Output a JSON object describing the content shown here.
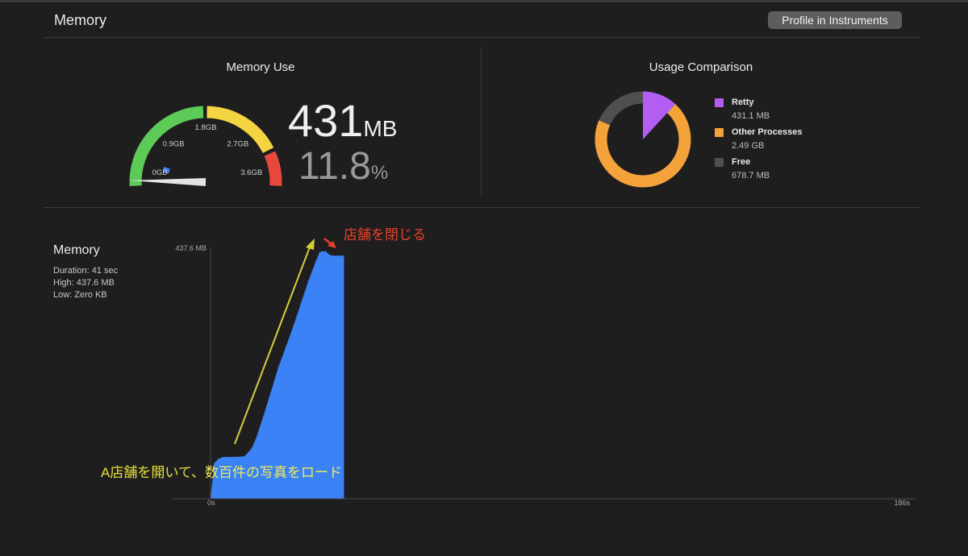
{
  "header": {
    "title": "Memory",
    "profile_button": "Profile in Instruments"
  },
  "memory_use": {
    "title": "Memory Use",
    "value": "431",
    "value_unit": "MB",
    "percent": "11.8",
    "percent_unit": "%",
    "gauge": {
      "ticks": [
        "0GB",
        "0.9GB",
        "1.8GB",
        "2.7GB",
        "3.6GB"
      ],
      "max_gb": 3.6,
      "needle_value_gb": 0.431,
      "segment_colors": [
        "#5dcb58",
        "#f5d443",
        "#e8483c"
      ],
      "marker_color": "#3b82f6"
    }
  },
  "usage_comparison": {
    "title": "Usage Comparison",
    "items": [
      {
        "name": "Retty",
        "value": "431.1 MB",
        "mb": 431.1,
        "color": "#b35df2"
      },
      {
        "name": "Other Processes",
        "value": "2.49 GB",
        "mb": 2549.8,
        "color": "#f3a33a"
      },
      {
        "name": "Free",
        "value": "678.7 MB",
        "mb": 678.7,
        "color": "#4f4f4f"
      }
    ]
  },
  "timeline": {
    "title": "Memory",
    "duration": "Duration: 41 sec",
    "high": "High: 437.6 MB",
    "low": "Low: Zero KB",
    "y_max_label": "437.6 MB",
    "x_start_label": "0s",
    "x_end_label": "186s",
    "fill_color": "#3b82f6",
    "annotations": {
      "close_store": "店舗を閉じる",
      "open_store_prefix": "A店舗を開いて、",
      "open_store_suffix": "数百件の写真をロード"
    }
  },
  "chart_data": {
    "type": "area",
    "title": "Memory",
    "xlabel": "",
    "ylabel": "",
    "x_unit": "s",
    "y_unit": "MB",
    "xlim": [
      0,
      186
    ],
    "ylim": [
      0,
      437.6
    ],
    "x": [
      0,
      1,
      2,
      3,
      4,
      6,
      9,
      10,
      11,
      12,
      14,
      16,
      18,
      20,
      22,
      24,
      26,
      28,
      29,
      29.7,
      30.7,
      31.5,
      32.5,
      34,
      35,
      35.5,
      35.5
    ],
    "values": [
      0,
      63,
      70,
      73,
      74,
      74,
      75,
      82,
      90,
      105,
      145,
      188,
      232,
      268,
      305,
      345,
      385,
      420,
      436,
      437.6,
      437.6,
      432,
      430,
      430,
      430,
      430,
      0
    ]
  }
}
